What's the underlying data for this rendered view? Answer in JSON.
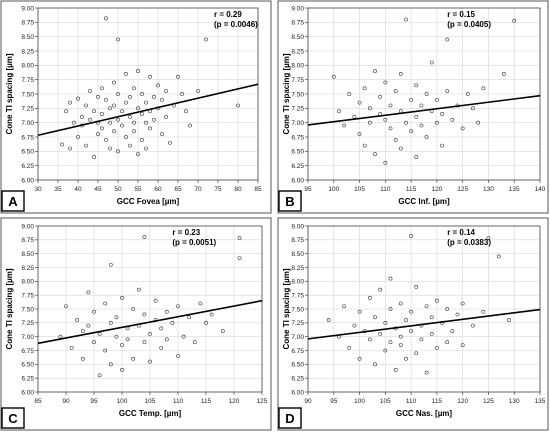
{
  "chart_data": [
    {
      "type": "scatter",
      "panel_letter": "A",
      "xlabel": "GCC Fovea [µm]",
      "ylabel": "Cone TI spacing [µm]",
      "xlim": [
        30,
        85
      ],
      "ylim": [
        6.0,
        9.0
      ],
      "x_ticks": [
        "30",
        "35",
        "40",
        "45",
        "50",
        "55",
        "60",
        "65",
        "70",
        "75",
        "80",
        "85"
      ],
      "y_ticks": [
        "6.00",
        "6.25",
        "6.50",
        "6.75",
        "7.00",
        "7.25",
        "7.50",
        "7.75",
        "8.00",
        "8.25",
        "8.50",
        "8.75",
        "9.00"
      ],
      "stat_r": "r = 0.29",
      "stat_p": "(p = 0.0046)",
      "grid": true,
      "fit_line": [
        [
          30,
          6.78
        ],
        [
          85,
          7.67
        ]
      ],
      "points": [
        [
          36,
          6.62
        ],
        [
          37,
          7.2
        ],
        [
          38,
          7.35
        ],
        [
          38,
          6.55
        ],
        [
          39,
          7.0
        ],
        [
          40,
          7.42
        ],
        [
          40,
          6.75
        ],
        [
          41,
          7.1
        ],
        [
          41,
          6.95
        ],
        [
          42,
          7.3
        ],
        [
          42,
          6.6
        ],
        [
          43,
          7.55
        ],
        [
          43,
          7.05
        ],
        [
          44,
          6.4
        ],
        [
          44,
          7.2
        ],
        [
          45,
          7.0
        ],
        [
          45,
          7.45
        ],
        [
          45,
          6.8
        ],
        [
          46,
          7.6
        ],
        [
          46,
          7.15
        ],
        [
          46,
          6.9
        ],
        [
          47,
          8.82
        ],
        [
          47,
          7.4
        ],
        [
          47,
          6.7
        ],
        [
          48,
          7.25
        ],
        [
          48,
          7.0
        ],
        [
          48,
          6.55
        ],
        [
          49,
          7.7
        ],
        [
          49,
          7.3
        ],
        [
          49,
          6.85
        ],
        [
          50,
          8.45
        ],
        [
          50,
          7.05
        ],
        [
          50,
          6.5
        ],
        [
          50,
          7.5
        ],
        [
          51,
          7.2
        ],
        [
          51,
          6.95
        ],
        [
          52,
          7.85
        ],
        [
          52,
          7.35
        ],
        [
          52,
          6.75
        ],
        [
          53,
          7.1
        ],
        [
          53,
          6.6
        ],
        [
          53,
          7.45
        ],
        [
          54,
          7.0
        ],
        [
          54,
          7.6
        ],
        [
          54,
          6.85
        ],
        [
          55,
          7.25
        ],
        [
          55,
          6.45
        ],
        [
          55,
          7.9
        ],
        [
          56,
          7.15
        ],
        [
          56,
          6.7
        ],
        [
          56,
          7.5
        ],
        [
          57,
          7.35
        ],
        [
          57,
          7.0
        ],
        [
          57,
          6.55
        ],
        [
          58,
          7.8
        ],
        [
          58,
          7.2
        ],
        [
          58,
          6.9
        ],
        [
          59,
          7.45
        ],
        [
          59,
          7.05
        ],
        [
          60,
          7.65
        ],
        [
          60,
          7.25
        ],
        [
          61,
          6.8
        ],
        [
          61,
          7.4
        ],
        [
          62,
          7.55
        ],
        [
          62,
          7.1
        ],
        [
          63,
          6.65
        ],
        [
          64,
          7.3
        ],
        [
          65,
          7.8
        ],
        [
          66,
          7.5
        ],
        [
          67,
          7.2
        ],
        [
          68,
          6.95
        ],
        [
          70,
          7.55
        ],
        [
          72,
          8.45
        ],
        [
          80,
          7.3
        ]
      ]
    },
    {
      "type": "scatter",
      "panel_letter": "B",
      "xlabel": "GCC Inf. [µm]",
      "ylabel": "Cone TI spacing [µm]",
      "xlim": [
        95,
        140
      ],
      "ylim": [
        6.0,
        9.0
      ],
      "x_ticks": [
        "95",
        "100",
        "105",
        "110",
        "115",
        "120",
        "125",
        "130",
        "135",
        "140"
      ],
      "y_ticks": [
        "6.00",
        "6.25",
        "6.50",
        "6.75",
        "7.00",
        "7.25",
        "7.50",
        "7.75",
        "8.00",
        "8.25",
        "8.50",
        "8.75",
        "9.00"
      ],
      "stat_r": "r = 0.15",
      "stat_p": "(p = 0.0405)",
      "grid": true,
      "fit_line": [
        [
          95,
          6.96
        ],
        [
          140,
          7.47
        ]
      ],
      "points": [
        [
          100,
          7.8
        ],
        [
          101,
          7.2
        ],
        [
          102,
          6.95
        ],
        [
          103,
          7.5
        ],
        [
          104,
          7.1
        ],
        [
          105,
          7.35
        ],
        [
          105,
          6.8
        ],
        [
          106,
          7.6
        ],
        [
          106,
          6.6
        ],
        [
          107,
          7.25
        ],
        [
          107,
          7.0
        ],
        [
          108,
          7.9
        ],
        [
          108,
          6.45
        ],
        [
          109,
          7.15
        ],
        [
          109,
          7.45
        ],
        [
          110,
          6.3
        ],
        [
          110,
          7.05
        ],
        [
          110,
          7.7
        ],
        [
          111,
          6.9
        ],
        [
          111,
          7.3
        ],
        [
          112,
          7.55
        ],
        [
          112,
          6.7
        ],
        [
          113,
          7.2
        ],
        [
          113,
          6.55
        ],
        [
          113,
          7.85
        ],
        [
          114,
          8.8
        ],
        [
          114,
          7.0
        ],
        [
          115,
          7.4
        ],
        [
          115,
          6.85
        ],
        [
          116,
          7.1
        ],
        [
          116,
          7.65
        ],
        [
          116,
          6.4
        ],
        [
          117,
          7.3
        ],
        [
          117,
          6.95
        ],
        [
          118,
          7.5
        ],
        [
          118,
          6.75
        ],
        [
          119,
          7.2
        ],
        [
          119,
          8.05
        ],
        [
          120,
          7.0
        ],
        [
          120,
          7.4
        ],
        [
          121,
          6.6
        ],
        [
          121,
          7.15
        ],
        [
          122,
          8.45
        ],
        [
          122,
          7.55
        ],
        [
          123,
          7.05
        ],
        [
          124,
          7.3
        ],
        [
          125,
          6.9
        ],
        [
          126,
          7.5
        ],
        [
          127,
          7.25
        ],
        [
          128,
          7.0
        ],
        [
          129,
          7.6
        ],
        [
          133,
          7.85
        ],
        [
          135,
          8.78
        ]
      ]
    },
    {
      "type": "scatter",
      "panel_letter": "C",
      "xlabel": "GCC Temp. [µm]",
      "ylabel": "Cone TI spacing [µm]",
      "xlim": [
        85,
        125
      ],
      "ylim": [
        6.0,
        9.0
      ],
      "x_ticks": [
        "85",
        "90",
        "95",
        "100",
        "105",
        "110",
        "115",
        "120",
        "125"
      ],
      "y_ticks": [
        "6.00",
        "6.25",
        "6.50",
        "6.75",
        "7.00",
        "7.25",
        "7.50",
        "7.75",
        "8.00",
        "8.25",
        "8.50",
        "8.75",
        "9.00"
      ],
      "stat_r": "r = 0.23",
      "stat_p": "(p = 0.0051)",
      "grid": true,
      "fit_line": [
        [
          85,
          6.88
        ],
        [
          125,
          7.65
        ]
      ],
      "points": [
        [
          89,
          7.0
        ],
        [
          90,
          7.55
        ],
        [
          91,
          6.8
        ],
        [
          92,
          7.3
        ],
        [
          93,
          7.1
        ],
        [
          93,
          6.6
        ],
        [
          94,
          7.8
        ],
        [
          94,
          7.2
        ],
        [
          95,
          6.9
        ],
        [
          95,
          7.45
        ],
        [
          96,
          6.3
        ],
        [
          96,
          7.05
        ],
        [
          97,
          7.6
        ],
        [
          97,
          6.75
        ],
        [
          98,
          7.25
        ],
        [
          98,
          6.5
        ],
        [
          98,
          8.3
        ],
        [
          99,
          7.0
        ],
        [
          99,
          7.35
        ],
        [
          100,
          6.85
        ],
        [
          100,
          7.7
        ],
        [
          100,
          6.4
        ],
        [
          101,
          7.15
        ],
        [
          101,
          6.95
        ],
        [
          102,
          7.5
        ],
        [
          102,
          6.6
        ],
        [
          103,
          7.2
        ],
        [
          103,
          7.85
        ],
        [
          104,
          6.9
        ],
        [
          104,
          7.4
        ],
        [
          104,
          8.8
        ],
        [
          105,
          7.05
        ],
        [
          105,
          6.55
        ],
        [
          106,
          7.3
        ],
        [
          106,
          7.65
        ],
        [
          107,
          6.8
        ],
        [
          107,
          7.15
        ],
        [
          108,
          7.45
        ],
        [
          108,
          6.95
        ],
        [
          109,
          7.25
        ],
        [
          110,
          6.65
        ],
        [
          110,
          7.55
        ],
        [
          111,
          7.0
        ],
        [
          112,
          7.35
        ],
        [
          113,
          6.9
        ],
        [
          114,
          7.6
        ],
        [
          115,
          7.25
        ],
        [
          116,
          7.4
        ],
        [
          118,
          7.1
        ],
        [
          121,
          8.78
        ],
        [
          121,
          8.42
        ]
      ]
    },
    {
      "type": "scatter",
      "panel_letter": "D",
      "xlabel": "GCC Nas. [µm]",
      "ylabel": "Cone TI spacing [µm]",
      "xlim": [
        90,
        135
      ],
      "ylim": [
        6.0,
        9.0
      ],
      "x_ticks": [
        "90",
        "95",
        "100",
        "105",
        "110",
        "115",
        "120",
        "125",
        "130",
        "135"
      ],
      "y_ticks": [
        "6.00",
        "6.25",
        "6.50",
        "6.75",
        "7.00",
        "7.25",
        "7.50",
        "7.75",
        "8.00",
        "8.25",
        "8.50",
        "8.75",
        "9.00"
      ],
      "stat_r": "r = 0.14",
      "stat_p": "(p = 0.0383)",
      "grid": true,
      "fit_line": [
        [
          90,
          6.96
        ],
        [
          135,
          7.49
        ]
      ],
      "points": [
        [
          94,
          7.3
        ],
        [
          96,
          7.0
        ],
        [
          97,
          7.55
        ],
        [
          98,
          6.8
        ],
        [
          99,
          7.2
        ],
        [
          100,
          7.45
        ],
        [
          100,
          6.6
        ],
        [
          101,
          7.1
        ],
        [
          102,
          7.7
        ],
        [
          102,
          6.95
        ],
        [
          103,
          7.35
        ],
        [
          103,
          6.5
        ],
        [
          104,
          7.05
        ],
        [
          104,
          7.85
        ],
        [
          105,
          6.75
        ],
        [
          105,
          7.25
        ],
        [
          106,
          8.05
        ],
        [
          106,
          6.9
        ],
        [
          106,
          7.5
        ],
        [
          107,
          7.15
        ],
        [
          107,
          6.4
        ],
        [
          108,
          7.6
        ],
        [
          108,
          6.85
        ],
        [
          108,
          7.0
        ],
        [
          109,
          7.3
        ],
        [
          109,
          6.6
        ],
        [
          110,
          8.82
        ],
        [
          110,
          7.45
        ],
        [
          110,
          7.1
        ],
        [
          111,
          6.7
        ],
        [
          111,
          7.9
        ],
        [
          112,
          7.2
        ],
        [
          112,
          6.95
        ],
        [
          113,
          7.55
        ],
        [
          113,
          6.35
        ],
        [
          114,
          7.05
        ],
        [
          114,
          7.35
        ],
        [
          115,
          6.8
        ],
        [
          115,
          7.65
        ],
        [
          116,
          7.25
        ],
        [
          117,
          6.9
        ],
        [
          117,
          7.5
        ],
        [
          118,
          7.1
        ],
        [
          119,
          7.4
        ],
        [
          120,
          6.85
        ],
        [
          120,
          7.6
        ],
        [
          122,
          7.2
        ],
        [
          124,
          7.45
        ],
        [
          125,
          8.78
        ],
        [
          127,
          8.45
        ],
        [
          129,
          7.3
        ]
      ]
    }
  ]
}
